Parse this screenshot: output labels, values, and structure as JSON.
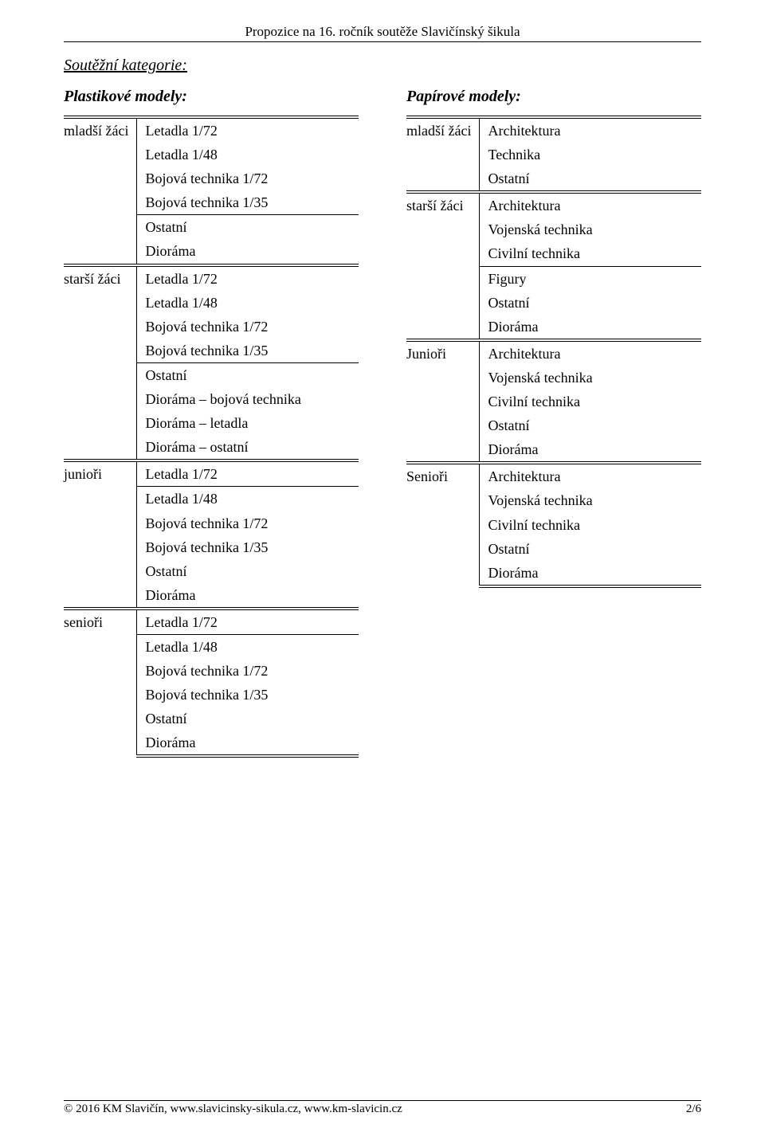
{
  "header": "Propozice na 16. ročník soutěže Slavičínský šikula",
  "section_title": "Soutěžní kategorie:",
  "left": {
    "heading": "Plastikové modely:",
    "groups": [
      {
        "label": "mladší žáci",
        "block1": [
          "Letadla 1/72",
          "Letadla 1/48",
          "Bojová technika 1/72",
          "Bojová technika 1/35"
        ],
        "block2": [
          "Ostatní",
          "Dioráma"
        ]
      },
      {
        "label": "starší žáci",
        "block1": [
          "Letadla 1/72",
          "Letadla 1/48",
          "Bojová technika 1/72",
          "Bojová technika 1/35"
        ],
        "block2": [
          "Ostatní",
          "Dioráma – bojová technika",
          "Dioráma – letadla",
          "Dioráma – ostatní"
        ]
      },
      {
        "label": "junioři",
        "block1": [
          "Letadla 1/72"
        ],
        "block2": [
          "Letadla 1/48",
          "Bojová technika 1/72",
          "Bojová technika 1/35",
          "Ostatní",
          "Dioráma"
        ]
      },
      {
        "label": "senioři",
        "block1": [
          "Letadla 1/72"
        ],
        "block2": [
          "Letadla 1/48",
          "Bojová technika 1/72",
          "Bojová technika 1/35",
          "Ostatní",
          "Dioráma"
        ]
      }
    ]
  },
  "right": {
    "heading": "Papírové modely:",
    "groups": [
      {
        "label": "mladší žáci",
        "block1": [
          "Architektura",
          "Technika",
          "Ostatní"
        ],
        "block2": []
      },
      {
        "label": "starší žáci",
        "block1": [
          "Architektura",
          "Vojenská technika",
          "Civilní technika"
        ],
        "block2": [
          "Figury",
          "Ostatní",
          "Dioráma"
        ]
      },
      {
        "label": "Junioři",
        "block1": [
          "Architektura",
          "Vojenská technika",
          "Civilní technika",
          "Ostatní",
          "Dioráma"
        ],
        "block2": []
      },
      {
        "label": "Senioři",
        "block1": [
          "Architektura",
          "Vojenská technika",
          "Civilní technika",
          "Ostatní",
          "Dioráma"
        ],
        "block2": []
      }
    ]
  },
  "footer": {
    "left": "© 2016 KM Slavičín, www.slavicinsky-sikula.cz, www.km-slavicin.cz",
    "right": "2/6"
  },
  "colors": {
    "text": "#000000",
    "background": "#ffffff",
    "rule": "#000000"
  },
  "fonts": {
    "body_family": "Times New Roman",
    "body_size_pt": 13,
    "heading_size_pt": 15
  }
}
